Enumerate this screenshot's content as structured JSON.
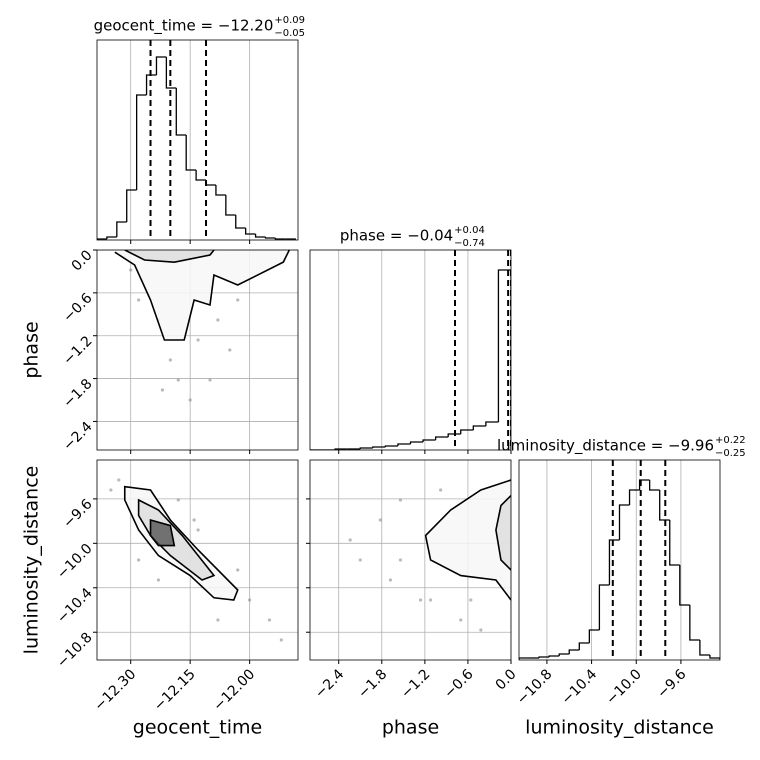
{
  "chart_data": [
    {
      "type": "histogram",
      "title": "geocent_time = −12.20",
      "title_plus": "+0.09",
      "title_minus": "−0.05",
      "bins": [
        -12.385,
        -12.36,
        -12.335,
        -12.31,
        -12.285,
        -12.26,
        -12.235,
        -12.21,
        -12.185,
        -12.16,
        -12.135,
        -12.11,
        -12.085,
        -12.06,
        -12.035,
        -12.01,
        -11.985,
        -11.96,
        -11.935,
        -11.91,
        -11.885
      ],
      "counts": [
        1,
        3,
        18,
        50,
        145,
        165,
        183,
        152,
        105,
        70,
        60,
        55,
        45,
        25,
        12,
        6,
        3,
        2,
        1,
        1
      ],
      "quantiles": [
        -12.25,
        -12.2,
        -12.11
      ],
      "xlim": [
        -12.385,
        -11.878
      ],
      "ylim": [
        0,
        200
      ],
      "xticks": [
        {
          "value": -12.3,
          "label": "−12.30"
        },
        {
          "value": -12.15,
          "label": "−12.15"
        },
        {
          "value": -12.0,
          "label": "−12.00"
        }
      ],
      "show_xtick_labels": false,
      "grid": true,
      "color": "#000000"
    },
    {
      "type": "contour",
      "ylabel": "phase",
      "xlim": [
        -12.385,
        -11.878
      ],
      "ylim": [
        -2.8,
        0
      ],
      "xticks": [
        {
          "value": -12.3,
          "label": "−12.30"
        },
        {
          "value": -12.15,
          "label": "−12.15"
        },
        {
          "value": -12.0,
          "label": "−12.00"
        }
      ],
      "yticks": [
        {
          "value": -2.4,
          "label": "−2.4"
        },
        {
          "value": -1.8,
          "label": "−1.8"
        },
        {
          "value": -1.2,
          "label": "−1.2"
        },
        {
          "value": -0.6,
          "label": "−0.6"
        },
        {
          "value": 0,
          "label": "0.0"
        }
      ],
      "show_xtick_labels": false,
      "show_ytick_labels": true,
      "grid": true,
      "color": "#000000",
      "point_color": "#8c8c8c",
      "contours": [
        {
          "x": [
            -12.34,
            -12.29,
            -12.25,
            -12.215,
            -12.165,
            -12.14,
            -12.1,
            -12.09,
            -12.03,
            -11.915,
            -11.9
          ],
          "y": [
            -0.03,
            -0.21,
            -0.7,
            -1.26,
            -1.26,
            -0.7,
            -0.77,
            -0.35,
            -0.49,
            -0.17,
            0
          ],
          "closed": false
        },
        {
          "x": [
            -12.315,
            -12.265,
            -12.19,
            -12.1,
            -12.09
          ],
          "y": [
            0,
            -0.14,
            -0.17,
            -0.07,
            0
          ],
          "closed": false
        }
      ],
      "points": {
        "x": [
          -12.28,
          -12.23,
          -12.2,
          -12.18,
          -12.13,
          -12.08,
          -12.03,
          -12.15,
          -12.3,
          -12.1,
          -12.05,
          -12.22
        ],
        "y": [
          -0.7,
          -0.98,
          -1.54,
          -1.82,
          -1.26,
          -0.98,
          -0.7,
          -2.1,
          -0.28,
          -1.82,
          -1.4,
          -1.96
        ]
      }
    },
    {
      "type": "contour",
      "xlabel": "geocent_time",
      "ylabel": "luminosity_distance",
      "xlim": [
        -12.385,
        -11.878
      ],
      "ylim": [
        -11.05,
        -9.25
      ],
      "xticks": [
        {
          "value": -12.3,
          "label": "−12.30"
        },
        {
          "value": -12.15,
          "label": "−12.15"
        },
        {
          "value": -12.0,
          "label": "−12.00"
        }
      ],
      "yticks": [
        {
          "value": -10.8,
          "label": "−10.8"
        },
        {
          "value": -10.4,
          "label": "−10.4"
        },
        {
          "value": -10.0,
          "label": "−10.0"
        },
        {
          "value": -9.6,
          "label": "−9.6"
        }
      ],
      "show_xtick_labels": true,
      "show_ytick_labels": true,
      "grid": true,
      "color": "#000000",
      "point_color": "#8c8c8c",
      "contours": [
        {
          "x": [
            -12.315,
            -12.25,
            -12.2,
            -12.13,
            -12.03,
            -12.04,
            -12.09,
            -12.15,
            -12.23,
            -12.28,
            -12.315
          ],
          "y": [
            -9.49,
            -9.52,
            -9.79,
            -10.06,
            -10.42,
            -10.51,
            -10.49,
            -10.29,
            -10.11,
            -9.88,
            -9.61
          ],
          "closed": true
        },
        {
          "x": [
            -12.28,
            -12.23,
            -12.17,
            -12.09,
            -12.12,
            -12.2,
            -12.25,
            -12.28
          ],
          "y": [
            -9.61,
            -9.7,
            -9.93,
            -10.29,
            -10.33,
            -10.11,
            -9.93,
            -9.75
          ],
          "closed": true
        },
        {
          "x": [
            -12.25,
            -12.2,
            -12.19,
            -12.23,
            -12.25
          ],
          "y": [
            -9.79,
            -9.84,
            -10.02,
            -10.02,
            -9.93
          ],
          "closed": true
        }
      ],
      "points": {
        "x": [
          -12.33,
          -12.35,
          -12.18,
          -12.13,
          -12.0,
          -11.95,
          -11.92,
          -12.28,
          -12.08,
          -12.23,
          -12.03,
          -12.14
        ],
        "y": [
          -9.43,
          -9.52,
          -9.61,
          -9.88,
          -10.51,
          -10.69,
          -10.87,
          -10.15,
          -10.69,
          -10.33,
          -10.24,
          -9.79
        ]
      }
    },
    {
      "type": "histogram",
      "title": "phase = −0.04",
      "title_plus": "+0.04",
      "title_minus": "−0.74",
      "bins": [
        -2.8,
        -2.625,
        -2.45,
        -2.275,
        -2.1,
        -1.925,
        -1.75,
        -1.575,
        -1.4,
        -1.225,
        -1.05,
        -0.875,
        -0.7,
        -0.525,
        -0.35,
        -0.175,
        0
      ],
      "counts": [
        0,
        0,
        1,
        1,
        2,
        3,
        4,
        6,
        8,
        10,
        13,
        16,
        20,
        24,
        28,
        180
      ],
      "quantiles": [
        -0.78,
        -0.04,
        0
      ],
      "xlim": [
        -2.8,
        0
      ],
      "ylim": [
        0,
        200
      ],
      "xticks": [
        {
          "value": -2.4,
          "label": "−2.4"
        },
        {
          "value": -1.8,
          "label": "−1.8"
        },
        {
          "value": -1.2,
          "label": "−1.2"
        },
        {
          "value": -0.6,
          "label": "−0.6"
        },
        {
          "value": 0,
          "label": "0.0"
        }
      ],
      "show_xtick_labels": false,
      "grid": true,
      "color": "#000000"
    },
    {
      "type": "contour",
      "xlabel": "phase",
      "xlim": [
        -2.8,
        0
      ],
      "ylim": [
        -11.05,
        -9.25
      ],
      "xticks": [
        {
          "value": -2.4,
          "label": "−2.4"
        },
        {
          "value": -1.8,
          "label": "−1.8"
        },
        {
          "value": -1.2,
          "label": "−1.2"
        },
        {
          "value": -0.6,
          "label": "−0.6"
        },
        {
          "value": 0,
          "label": "0.0"
        }
      ],
      "yticks": [
        {
          "value": -10.8,
          "label": "−10.8"
        },
        {
          "value": -10.4,
          "label": "−10.4"
        },
        {
          "value": -10.0,
          "label": "−10.0"
        },
        {
          "value": -9.6,
          "label": "−9.6"
        }
      ],
      "show_xtick_labels": true,
      "show_ytick_labels": false,
      "grid": true,
      "color": "#000000",
      "point_color": "#8c8c8c",
      "contours": [
        {
          "x": [
            0,
            -0.42,
            -0.84,
            -1.19,
            -1.12,
            -0.7,
            -0.21,
            0
          ],
          "y": [
            -9.43,
            -9.52,
            -9.7,
            -9.93,
            -10.15,
            -10.29,
            -10.33,
            -10.51
          ],
          "closed": false
        },
        {
          "x": [
            0,
            -0.14,
            -0.21,
            -0.14,
            0
          ],
          "y": [
            -9.57,
            -9.66,
            -9.88,
            -10.15,
            -10.24
          ],
          "closed": false
        }
      ],
      "points": {
        "x": [
          -2.24,
          -1.82,
          -1.54,
          -1.68,
          -1.26,
          -0.98,
          -0.7,
          -0.56,
          -1.54,
          -2.1,
          -0.42,
          -1.12
        ],
        "y": [
          -9.97,
          -9.79,
          -9.61,
          -10.33,
          -10.51,
          -9.52,
          -10.69,
          -10.51,
          -10.15,
          -10.15,
          -10.78,
          -10.51
        ]
      }
    },
    {
      "type": "histogram",
      "title": "luminosity_distance = −9.96",
      "title_plus": "+0.22",
      "title_minus": "−0.25",
      "xlabel": "luminosity_distance",
      "bins": [
        -11.05,
        -10.96,
        -10.87,
        -10.78,
        -10.69,
        -10.6,
        -10.51,
        -10.42,
        -10.33,
        -10.24,
        -10.15,
        -10.06,
        -9.97,
        -9.88,
        -9.79,
        -9.7,
        -9.61,
        -9.52,
        -9.43,
        -9.34,
        -9.25
      ],
      "counts": [
        2,
        2,
        3,
        4,
        6,
        10,
        17,
        30,
        75,
        120,
        155,
        170,
        180,
        170,
        140,
        95,
        55,
        20,
        5,
        2
      ],
      "quantiles": [
        -10.21,
        -9.96,
        -9.74
      ],
      "xlim": [
        -11.05,
        -9.25
      ],
      "ylim": [
        0,
        200
      ],
      "xticks": [
        {
          "value": -10.8,
          "label": "−10.8"
        },
        {
          "value": -10.4,
          "label": "−10.4"
        },
        {
          "value": -10.0,
          "label": "−10.0"
        },
        {
          "value": -9.6,
          "label": "−9.6"
        }
      ],
      "show_xtick_labels": true,
      "grid": true,
      "color": "#000000"
    }
  ]
}
